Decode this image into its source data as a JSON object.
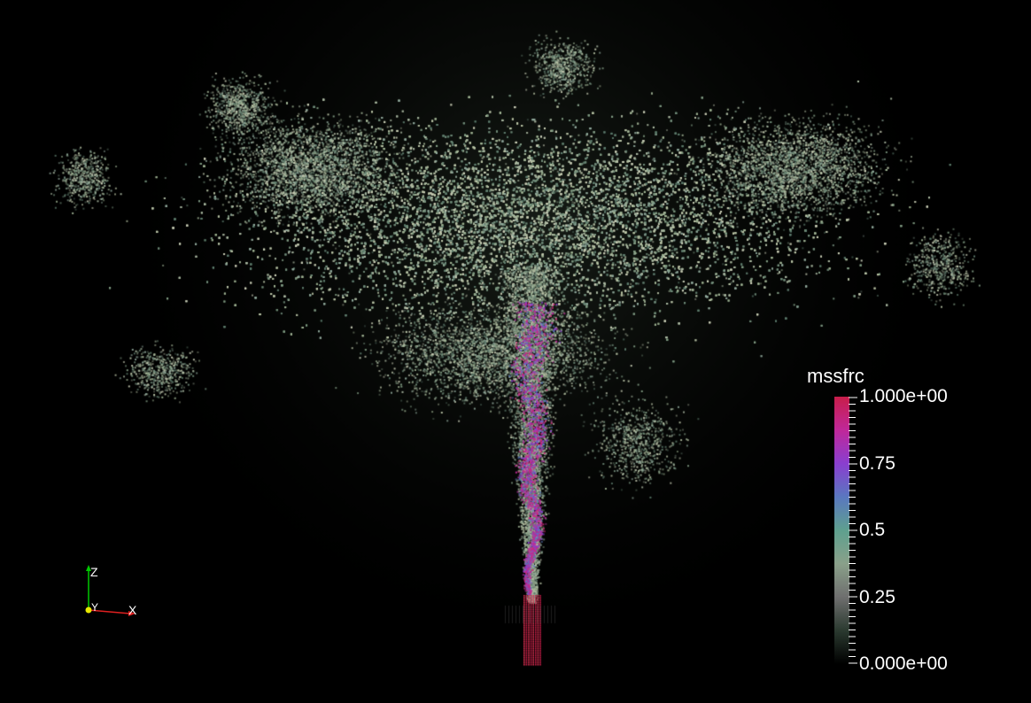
{
  "legend": {
    "title": "mssfrc",
    "labels": [
      "1.000e+00",
      "0.75",
      "0.5",
      "0.25",
      "0.000e+00"
    ],
    "colors": [
      "#000000",
      "#2b3a30",
      "#6f6f6f",
      "#8aa08a",
      "#5fa08f",
      "#5a78c0",
      "#8a3fd0",
      "#c0289a",
      "#c81e4a"
    ]
  },
  "axes": {
    "z_label": "Z",
    "y_label": "Y",
    "x_label": "X",
    "z_color": "#00c800",
    "x_color": "#e02020",
    "y_color": "#e8e800"
  },
  "scene": {
    "background": "#000000",
    "icon": "particle-cloud-render"
  }
}
